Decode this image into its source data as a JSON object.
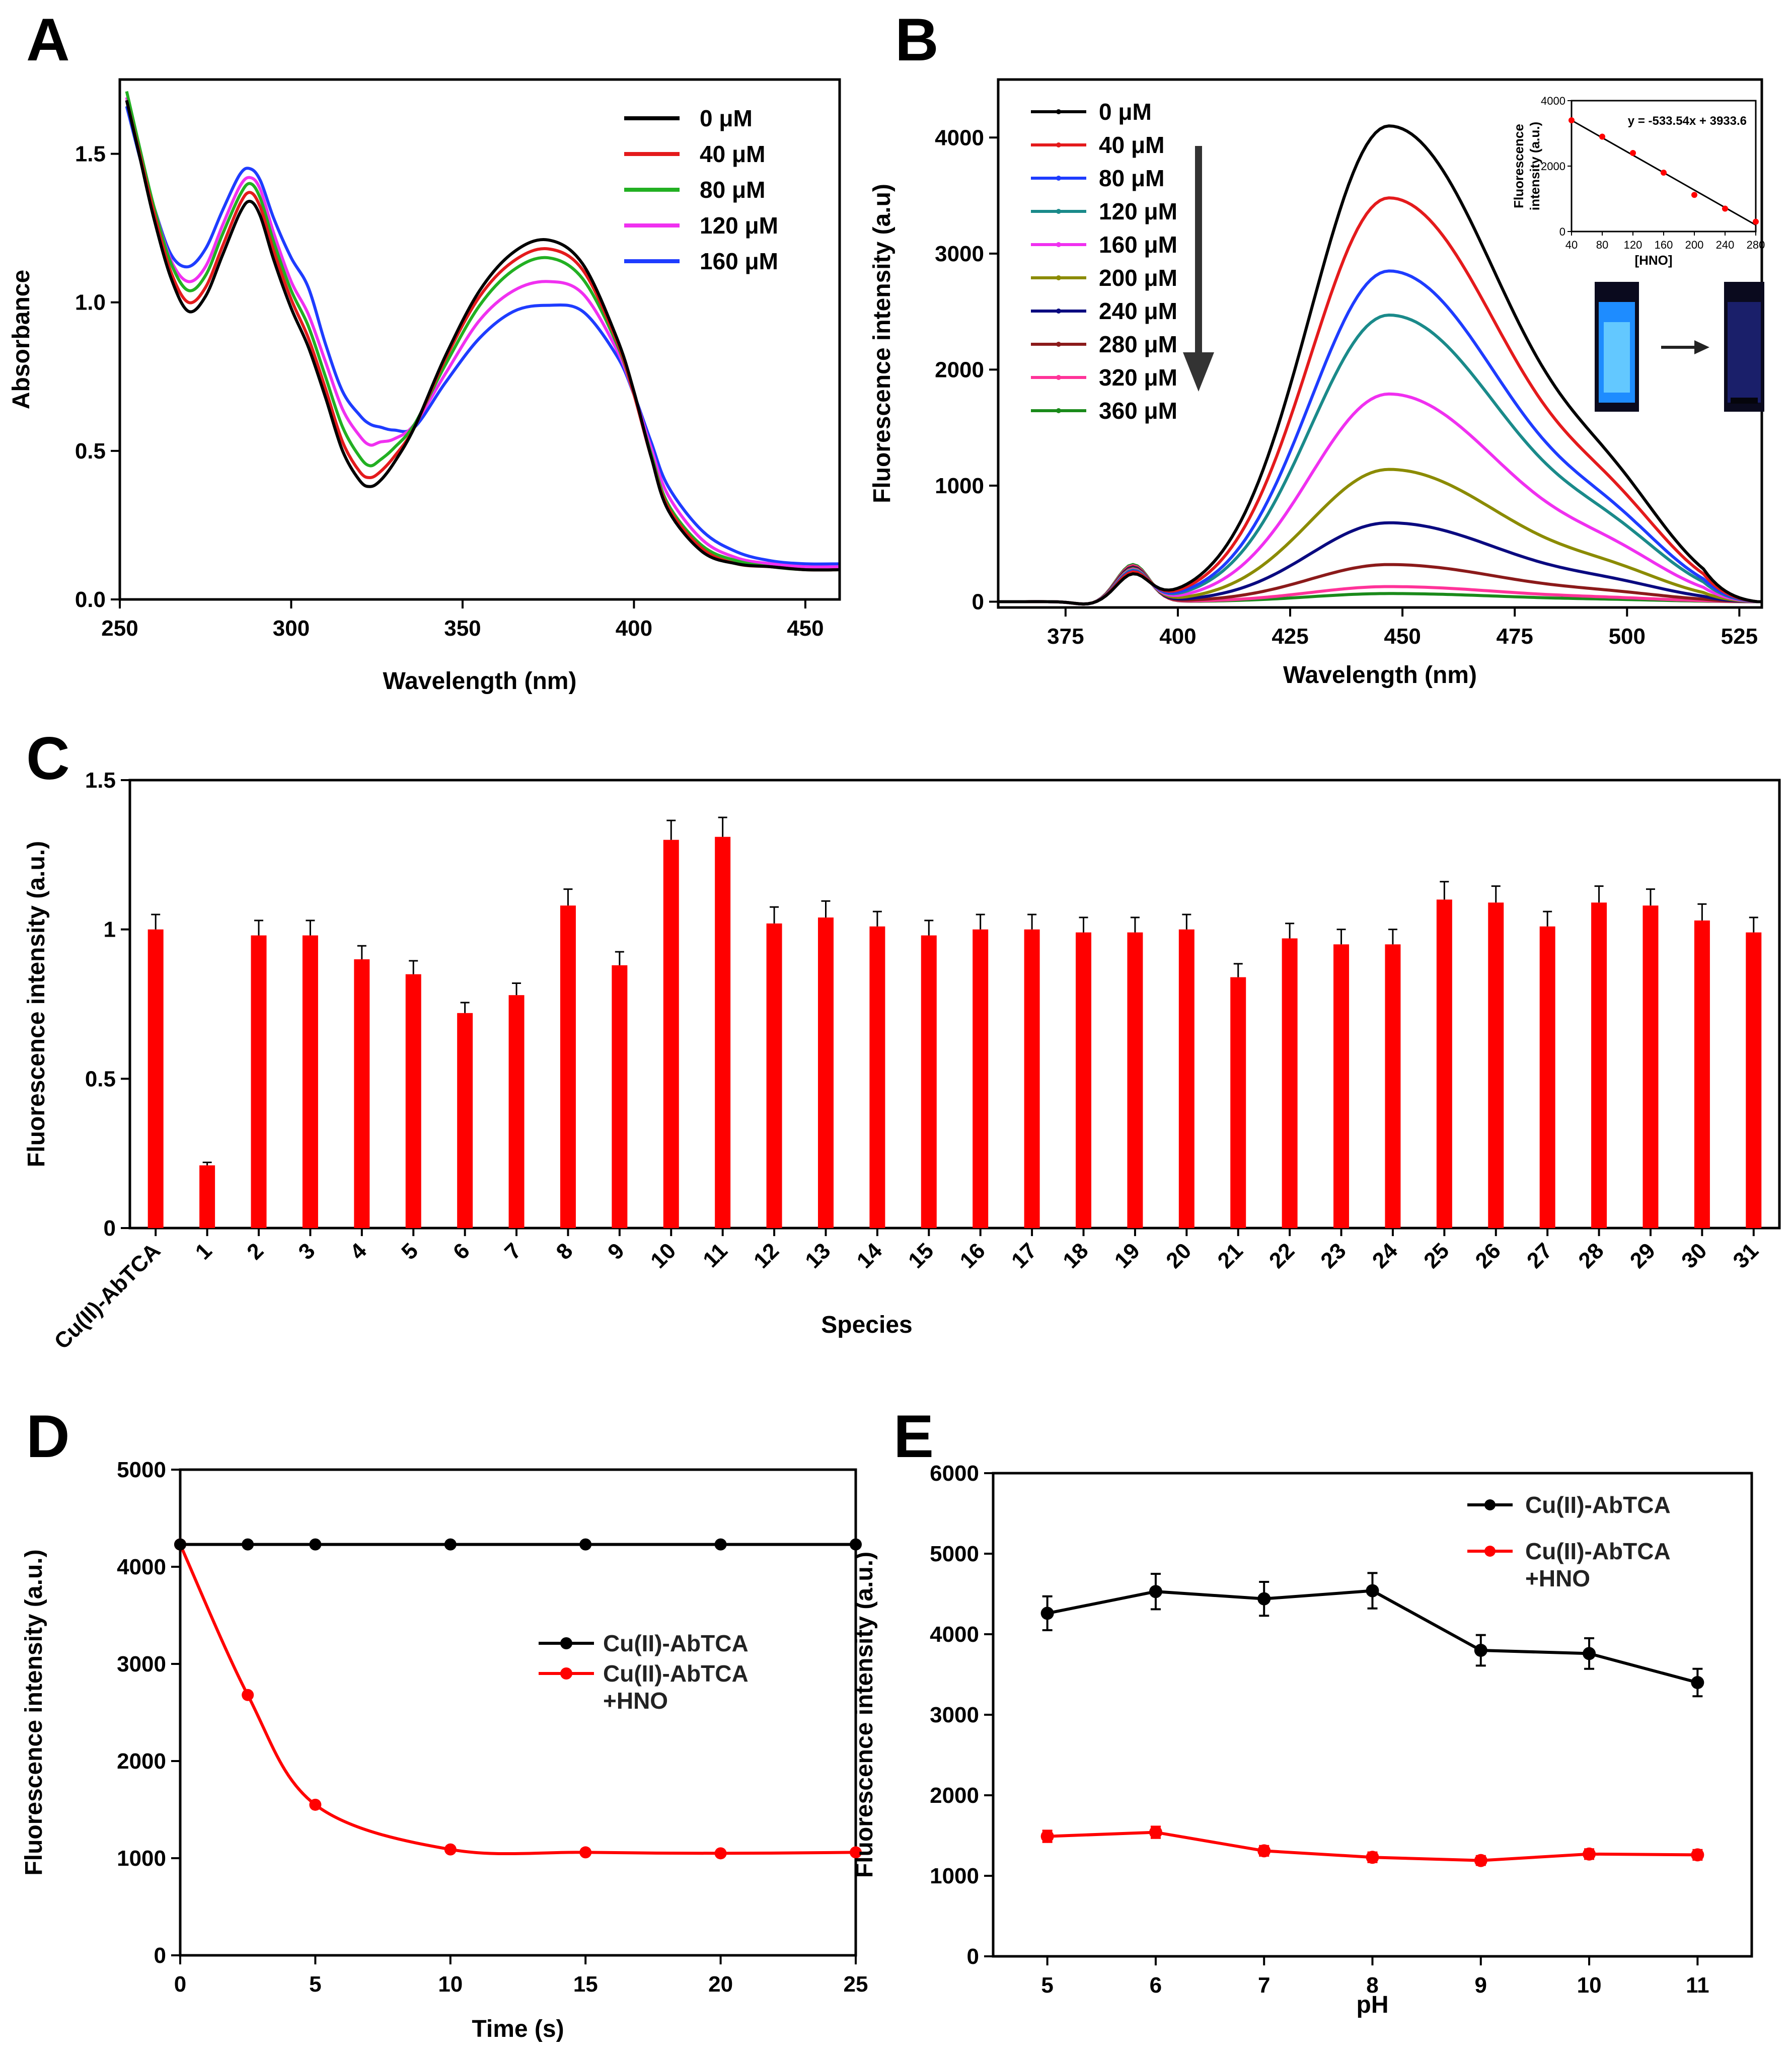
{
  "panels": {
    "A": "A",
    "B": "B",
    "C": "C",
    "D": "D",
    "E": "E"
  },
  "chart_data": [
    {
      "id": "A",
      "type": "line",
      "title": "",
      "xlabel": "Wavelength (nm)",
      "ylabel": "Absorbance",
      "xlim": [
        250,
        460
      ],
      "ylim": [
        0,
        1.75
      ],
      "xticks": [
        "250",
        "300",
        "350",
        "400",
        "450"
      ],
      "yticks": [
        "0.0",
        "0.5",
        "1.0",
        "1.5"
      ],
      "legend_position": "top-right",
      "x": [
        252,
        256,
        260,
        265,
        270,
        275,
        280,
        285,
        288,
        291,
        295,
        300,
        305,
        310,
        315,
        320,
        323,
        326,
        330,
        336,
        345,
        355,
        365,
        375,
        385,
        395,
        400,
        405,
        410,
        420,
        430,
        440,
        450,
        460
      ],
      "series": [
        {
          "name": "0 μM",
          "color": "#000000",
          "values": [
            1.68,
            1.48,
            1.28,
            1.08,
            0.97,
            1.02,
            1.16,
            1.3,
            1.34,
            1.29,
            1.14,
            0.98,
            0.85,
            0.68,
            0.5,
            0.4,
            0.38,
            0.4,
            0.46,
            0.58,
            0.82,
            1.04,
            1.17,
            1.21,
            1.13,
            0.88,
            0.7,
            0.48,
            0.3,
            0.16,
            0.12,
            0.11,
            0.1,
            0.1
          ]
        },
        {
          "name": "40 μM",
          "color": "#e41a1c",
          "values": [
            1.68,
            1.49,
            1.3,
            1.1,
            1.0,
            1.05,
            1.19,
            1.33,
            1.37,
            1.32,
            1.17,
            1.01,
            0.88,
            0.71,
            0.53,
            0.43,
            0.41,
            0.43,
            0.48,
            0.58,
            0.81,
            1.02,
            1.14,
            1.18,
            1.11,
            0.87,
            0.69,
            0.48,
            0.31,
            0.17,
            0.12,
            0.11,
            0.1,
            0.1
          ]
        },
        {
          "name": "80 μM",
          "color": "#22b022",
          "values": [
            1.71,
            1.51,
            1.32,
            1.13,
            1.04,
            1.09,
            1.23,
            1.36,
            1.4,
            1.35,
            1.2,
            1.04,
            0.92,
            0.75,
            0.58,
            0.48,
            0.45,
            0.47,
            0.51,
            0.59,
            0.79,
            0.99,
            1.11,
            1.15,
            1.08,
            0.86,
            0.69,
            0.49,
            0.32,
            0.18,
            0.13,
            0.11,
            0.1,
            0.1
          ]
        },
        {
          "name": "120 μM",
          "color": "#f030f0",
          "values": [
            1.69,
            1.5,
            1.32,
            1.14,
            1.07,
            1.12,
            1.26,
            1.39,
            1.42,
            1.38,
            1.23,
            1.07,
            0.96,
            0.8,
            0.64,
            0.55,
            0.52,
            0.53,
            0.54,
            0.59,
            0.76,
            0.94,
            1.04,
            1.07,
            1.03,
            0.84,
            0.69,
            0.51,
            0.35,
            0.2,
            0.14,
            0.12,
            0.11,
            0.11
          ]
        },
        {
          "name": "160 μM",
          "color": "#1e3cff",
          "values": [
            1.66,
            1.48,
            1.32,
            1.16,
            1.12,
            1.18,
            1.31,
            1.43,
            1.45,
            1.41,
            1.28,
            1.15,
            1.05,
            0.86,
            0.7,
            0.62,
            0.59,
            0.58,
            0.57,
            0.58,
            0.73,
            0.88,
            0.97,
            0.99,
            0.97,
            0.82,
            0.69,
            0.53,
            0.38,
            0.23,
            0.16,
            0.13,
            0.12,
            0.12
          ]
        }
      ]
    },
    {
      "id": "B",
      "type": "line",
      "title": "",
      "xlabel": "Wavelength (nm)",
      "ylabel": "Fluorescence intensity (a.u)",
      "xlim": [
        360,
        530
      ],
      "ylim": [
        -50,
        4500
      ],
      "xticks": [
        "375",
        "400",
        "425",
        "450",
        "475",
        "500",
        "525"
      ],
      "yticks": [
        "0",
        "1000",
        "2000",
        "3000",
        "4000"
      ],
      "legend_position": "top-left",
      "arrow": "down",
      "peak_x": 447,
      "series": [
        {
          "name": "0 μM",
          "color": "#000000",
          "peak": 4100,
          "sub": 220
        },
        {
          "name": "40 μM",
          "color": "#e41a1c",
          "peak": 3480,
          "sub": 240
        },
        {
          "name": "80 μM",
          "color": "#1e3cff",
          "peak": 2850,
          "sub": 250
        },
        {
          "name": "120 μM",
          "color": "#1a8a8a",
          "peak": 2470,
          "sub": 260
        },
        {
          "name": "160 μM",
          "color": "#f030f0",
          "peak": 1790,
          "sub": 270
        },
        {
          "name": "200 μM",
          "color": "#8b8b00",
          "peak": 1140,
          "sub": 280
        },
        {
          "name": "240 μM",
          "color": "#0a0a80",
          "peak": 680,
          "sub": 290
        },
        {
          "name": "280 μM",
          "color": "#8b1a1a",
          "peak": 320,
          "sub": 300
        },
        {
          "name": "320 μM",
          "color": "#ff3399",
          "peak": 130,
          "sub": 310
        },
        {
          "name": "360 μM",
          "color": "#1a8a1a",
          "peak": 70,
          "sub": 320
        }
      ],
      "inset": {
        "type": "scatter",
        "xlabel": "[HNO]",
        "ylabel": "Fluorescence intensity (a.u.)",
        "ylabel_lines": [
          "Fluorescence",
          "intensity (a.u.)"
        ],
        "equation": "y = -533.54x + 3933.6",
        "xlim": [
          40,
          280
        ],
        "ylim": [
          0,
          4000
        ],
        "xticks": [
          "40",
          "80",
          "120",
          "160",
          "200",
          "240",
          "280"
        ],
        "yticks": [
          "0",
          "2000",
          "4000"
        ],
        "x": [
          40,
          80,
          120,
          160,
          200,
          240,
          280
        ],
        "values": [
          3400,
          2900,
          2400,
          1800,
          1120,
          700,
          300
        ],
        "fit": [
          3400,
          2867,
          2333,
          1800,
          1267,
          733,
          200
        ]
      }
    },
    {
      "id": "C",
      "type": "bar",
      "title": "",
      "xlabel": "Species",
      "ylabel": "Fluorescence intensity (a.u.)",
      "ylim": [
        0,
        1.5
      ],
      "yticks": [
        "0",
        "0.5",
        "1",
        "1.5"
      ],
      "bar_color": "#ff0000",
      "categories": [
        "Cu(II)-AbTCA",
        "1",
        "2",
        "3",
        "4",
        "5",
        "6",
        "7",
        "8",
        "9",
        "10",
        "11",
        "12",
        "13",
        "14",
        "15",
        "16",
        "17",
        "18",
        "19",
        "20",
        "21",
        "22",
        "23",
        "24",
        "25",
        "26",
        "27",
        "28",
        "29",
        "30",
        "31"
      ],
      "values": [
        1.0,
        0.21,
        0.98,
        0.98,
        0.9,
        0.85,
        0.72,
        0.78,
        1.08,
        0.88,
        1.3,
        1.31,
        1.02,
        1.04,
        1.01,
        0.98,
        1.0,
        1.0,
        0.99,
        0.99,
        1.0,
        0.84,
        0.97,
        0.95,
        0.95,
        1.1,
        1.09,
        1.01,
        1.09,
        1.08,
        1.03,
        0.99
      ],
      "errors": [
        0.05,
        0.01,
        0.05,
        0.05,
        0.045,
        0.045,
        0.035,
        0.04,
        0.055,
        0.045,
        0.065,
        0.065,
        0.055,
        0.055,
        0.05,
        0.05,
        0.05,
        0.05,
        0.05,
        0.05,
        0.05,
        0.045,
        0.05,
        0.05,
        0.05,
        0.06,
        0.055,
        0.05,
        0.055,
        0.055,
        0.055,
        0.05
      ]
    },
    {
      "id": "D",
      "type": "line",
      "title": "",
      "xlabel": "Time (s)",
      "ylabel": "Fluorescence intensity (a.u.)",
      "xlim": [
        0,
        25
      ],
      "ylim": [
        0,
        5000
      ],
      "xticks": [
        "0",
        "5",
        "10",
        "15",
        "20",
        "25"
      ],
      "yticks": [
        "0",
        "1000",
        "2000",
        "3000",
        "4000",
        "5000"
      ],
      "legend_position": "center-right",
      "series": [
        {
          "name": "Cu(II)-AbTCA",
          "color": "#000000",
          "x": [
            0,
            2.5,
            5,
            10,
            15,
            20,
            25
          ],
          "values": [
            4230,
            4230,
            4230,
            4230,
            4230,
            4230,
            4230
          ]
        },
        {
          "name": "Cu(II)-AbTCA\n+HNO",
          "name_lines": [
            "Cu(II)-AbTCA",
            "+HNO"
          ],
          "color": "#ff0000",
          "x": [
            0,
            2.5,
            5,
            10,
            15,
            20,
            25
          ],
          "values": [
            4230,
            2680,
            1550,
            1090,
            1060,
            1050,
            1060
          ]
        }
      ]
    },
    {
      "id": "E",
      "type": "line",
      "title": "",
      "xlabel": "pH",
      "ylabel": "Fluorescence intensity (a.u.)",
      "xlim": [
        4.5,
        11.5
      ],
      "ylim": [
        0,
        6000
      ],
      "xticks": [
        "5",
        "6",
        "7",
        "8",
        "9",
        "10",
        "11"
      ],
      "yticks": [
        "0",
        "1000",
        "2000",
        "3000",
        "4000",
        "5000",
        "6000"
      ],
      "legend_position": "top-right",
      "series": [
        {
          "name": "Cu(II)-AbTCA",
          "color": "#000000",
          "x": [
            5,
            6,
            7,
            8,
            9,
            10,
            11
          ],
          "values": [
            4260,
            4530,
            4440,
            4540,
            3800,
            3760,
            3400
          ],
          "errors": [
            210,
            220,
            210,
            220,
            190,
            190,
            170
          ]
        },
        {
          "name": "Cu(II)-AbTCA\n+HNO",
          "name_lines": [
            "Cu(II)-AbTCA",
            "+HNO"
          ],
          "color": "#ff0000",
          "x": [
            5,
            6,
            7,
            8,
            9,
            10,
            11
          ],
          "values": [
            1490,
            1540,
            1310,
            1230,
            1190,
            1270,
            1260
          ],
          "errors": [
            70,
            70,
            60,
            60,
            55,
            60,
            60
          ]
        }
      ]
    }
  ]
}
